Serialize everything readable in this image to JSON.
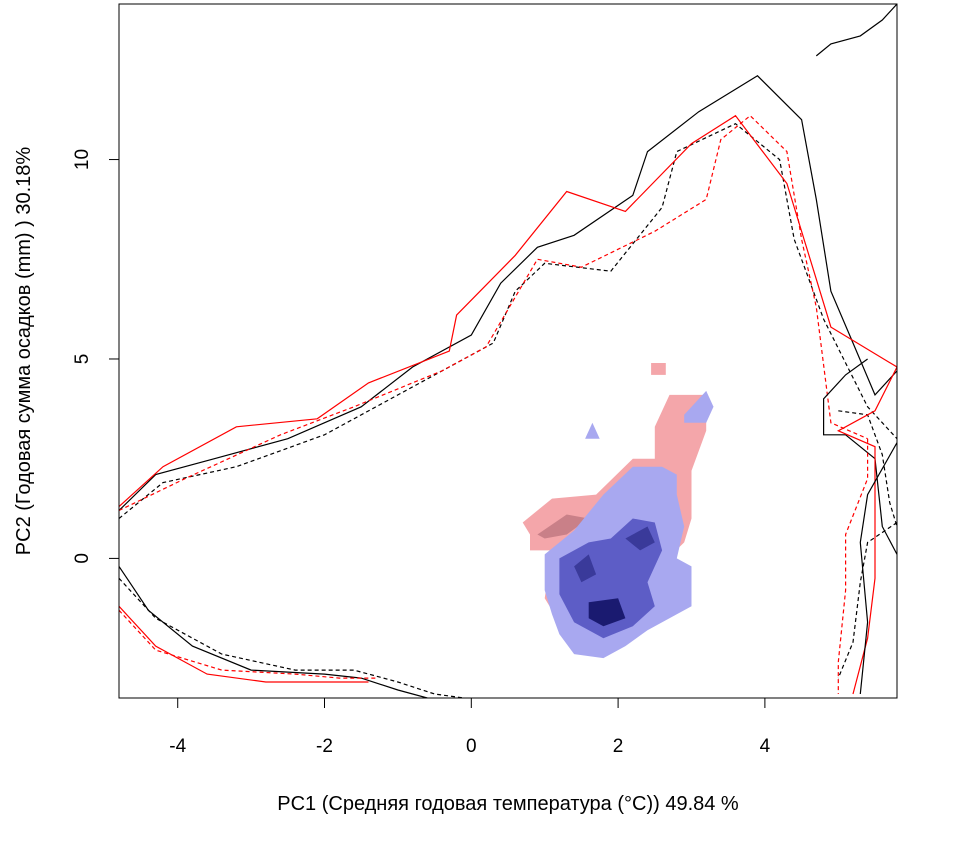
{
  "chart_data": {
    "type": "heatmap",
    "title": "",
    "xlabel": "PC1 (Средняя годовая температура (°C)) 49.84 %",
    "ylabel": "PC2 (Годовая сумма осадков  (mm) ) 30.18%",
    "xlim": [
      -4.8,
      5.8
    ],
    "ylim": [
      -3.5,
      13.9
    ],
    "x_ticks": [
      -4,
      -2,
      0,
      2,
      4
    ],
    "y_ticks": [
      0,
      5,
      10
    ],
    "x_tick_labels": [
      "-4",
      "-2",
      "0",
      "2",
      "4"
    ],
    "y_tick_labels": [
      "0",
      "5",
      "10"
    ],
    "grid": false,
    "legend": "none",
    "colors": {
      "contour_black": "#000000",
      "contour_red": "#ff0000",
      "unfilling": "#f4a6aa",
      "unfilling_dark": "#c98088",
      "stability_light": "#a8a8f0",
      "stability_mid": "#5d5dc6",
      "stability_dark": "#1a1a70"
    },
    "contours": [
      {
        "id": "black-solid",
        "color": "#000000",
        "dash": "solid",
        "points": [
          [
            -4.8,
            1.2
          ],
          [
            -4.3,
            2.1
          ],
          [
            -3.5,
            2.5
          ],
          [
            -2.5,
            3.0
          ],
          [
            -1.5,
            3.8
          ],
          [
            -0.8,
            4.8
          ],
          [
            0,
            5.6
          ],
          [
            0.4,
            6.9
          ],
          [
            0.9,
            7.8
          ],
          [
            1.4,
            8.1
          ],
          [
            2.2,
            9.1
          ],
          [
            2.4,
            10.2
          ],
          [
            3.1,
            11.2
          ],
          [
            3.9,
            12.1
          ],
          [
            4.5,
            11.0
          ],
          [
            4.7,
            9.0
          ],
          [
            4.9,
            6.7
          ],
          [
            5.2,
            5.4
          ],
          [
            5.5,
            4.1
          ],
          [
            5.8,
            4.7
          ]
        ]
      },
      {
        "id": "black-dashed",
        "color": "#000000",
        "dash": "dashed",
        "points": [
          [
            -4.8,
            1.0
          ],
          [
            -4.2,
            1.9
          ],
          [
            -3.2,
            2.3
          ],
          [
            -2.0,
            3.1
          ],
          [
            -1.0,
            4.1
          ],
          [
            0.3,
            5.4
          ],
          [
            0.6,
            6.7
          ],
          [
            1.0,
            7.4
          ],
          [
            1.9,
            7.2
          ],
          [
            2.6,
            8.8
          ],
          [
            2.8,
            10.2
          ],
          [
            3.6,
            10.9
          ],
          [
            4.2,
            10.0
          ],
          [
            4.4,
            8.0
          ],
          [
            4.8,
            6.0
          ],
          [
            5.4,
            3.8
          ],
          [
            5.8,
            3.0
          ]
        ]
      },
      {
        "id": "red-solid",
        "color": "#ff0000",
        "dash": "solid",
        "points": [
          [
            -4.8,
            1.3
          ],
          [
            -4.2,
            2.3
          ],
          [
            -3.2,
            3.3
          ],
          [
            -2.1,
            3.5
          ],
          [
            -1.4,
            4.4
          ],
          [
            -0.3,
            5.2
          ],
          [
            -0.2,
            6.1
          ],
          [
            0.6,
            7.6
          ],
          [
            1.3,
            9.2
          ],
          [
            2.1,
            8.7
          ],
          [
            3.0,
            10.4
          ],
          [
            3.6,
            11.1
          ],
          [
            4.3,
            9.4
          ],
          [
            4.7,
            7.0
          ],
          [
            4.9,
            5.8
          ],
          [
            5.8,
            4.8
          ]
        ]
      },
      {
        "id": "red-dashed",
        "color": "#ff0000",
        "dash": "dashed",
        "points": [
          [
            -4.8,
            1.2
          ],
          [
            -3.9,
            2.0
          ],
          [
            -2.6,
            3.1
          ],
          [
            -1.6,
            3.8
          ],
          [
            -0.4,
            4.7
          ],
          [
            0.2,
            5.3
          ],
          [
            0.9,
            7.5
          ],
          [
            1.5,
            7.3
          ],
          [
            2.5,
            8.2
          ],
          [
            3.2,
            9.0
          ],
          [
            3.4,
            10.5
          ],
          [
            3.8,
            11.1
          ],
          [
            4.3,
            10.2
          ],
          [
            4.5,
            8.0
          ],
          [
            4.7,
            6.3
          ],
          [
            4.9,
            3.4
          ],
          [
            5.4,
            3.0
          ]
        ]
      },
      {
        "id": "black-solid-bottom",
        "color": "#000000",
        "dash": "solid",
        "points": [
          [
            -4.8,
            -0.2
          ],
          [
            -4.4,
            -1.3
          ],
          [
            -3.8,
            -2.2
          ],
          [
            -3.0,
            -2.8
          ],
          [
            -2.0,
            -2.9
          ],
          [
            -1.5,
            -3.0
          ],
          [
            -1.0,
            -3.3
          ],
          [
            -0.6,
            -3.5
          ]
        ]
      },
      {
        "id": "black-dashed-bottom",
        "color": "#000000",
        "dash": "dashed",
        "points": [
          [
            -4.8,
            -0.5
          ],
          [
            -4.3,
            -1.5
          ],
          [
            -3.4,
            -2.4
          ],
          [
            -2.4,
            -2.8
          ],
          [
            -1.6,
            -2.8
          ],
          [
            -1.0,
            -3.1
          ],
          [
            -0.5,
            -3.4
          ],
          [
            -0.1,
            -3.5
          ]
        ]
      },
      {
        "id": "red-solid-bottom",
        "color": "#ff0000",
        "dash": "solid",
        "points": [
          [
            -4.8,
            -1.2
          ],
          [
            -4.3,
            -2.2
          ],
          [
            -3.6,
            -2.9
          ],
          [
            -2.8,
            -3.1
          ],
          [
            -2.0,
            -3.1
          ],
          [
            -1.4,
            -3.1
          ]
        ]
      },
      {
        "id": "red-dashed-bottom",
        "color": "#ff0000",
        "dash": "dashed",
        "points": [
          [
            -4.8,
            -1.3
          ],
          [
            -4.3,
            -2.3
          ],
          [
            -3.4,
            -2.8
          ],
          [
            -2.4,
            -2.9
          ],
          [
            -1.8,
            -3.0
          ],
          [
            -1.3,
            -3.0
          ]
        ]
      },
      {
        "id": "black-solid-right",
        "color": "#000000",
        "dash": "solid",
        "points": [
          [
            5.4,
            5.0
          ],
          [
            5.1,
            4.6
          ],
          [
            4.8,
            4.0
          ],
          [
            4.8,
            3.1
          ],
          [
            5.1,
            3.1
          ],
          [
            5.5,
            2.5
          ],
          [
            5.6,
            0.8
          ],
          [
            5.8,
            0.1
          ]
        ]
      },
      {
        "id": "black-dashed-right",
        "color": "#000000",
        "dash": "dashed",
        "points": [
          [
            5.0,
            3.7
          ],
          [
            5.4,
            3.6
          ],
          [
            5.6,
            2.6
          ],
          [
            5.7,
            1.4
          ],
          [
            5.8,
            0.8
          ]
        ]
      },
      {
        "id": "red-solid-right",
        "color": "#ff0000",
        "dash": "solid",
        "points": [
          [
            5.8,
            4.8
          ],
          [
            5.5,
            3.7
          ],
          [
            5.0,
            3.2
          ],
          [
            5.5,
            2.8
          ],
          [
            5.5,
            1.5
          ],
          [
            5.5,
            -0.5
          ],
          [
            5.4,
            -2.0
          ],
          [
            5.2,
            -3.4
          ]
        ]
      },
      {
        "id": "red-dashed-right",
        "color": "#ff0000",
        "dash": "dashed",
        "points": [
          [
            5.4,
            3.0
          ],
          [
            5.4,
            2.0
          ],
          [
            5.1,
            0.6
          ],
          [
            5.1,
            -0.8
          ],
          [
            5.0,
            -2.6
          ],
          [
            5.0,
            -3.4
          ]
        ]
      },
      {
        "id": "black-solid-far-right",
        "color": "#000000",
        "dash": "solid",
        "points": [
          [
            5.8,
            2.9
          ],
          [
            5.4,
            1.6
          ],
          [
            5.3,
            0.4
          ],
          [
            5.4,
            -1.6
          ],
          [
            5.3,
            -3.4
          ]
        ]
      },
      {
        "id": "black-dashed-far-right",
        "color": "#000000",
        "dash": "dashed",
        "points": [
          [
            5.8,
            0.9
          ],
          [
            5.4,
            0.4
          ],
          [
            5.3,
            -0.6
          ],
          [
            5.2,
            -2.1
          ],
          [
            5.0,
            -3.0
          ]
        ]
      },
      {
        "id": "black-solid-top-right",
        "color": "#000000",
        "dash": "solid",
        "points": [
          [
            4.7,
            12.6
          ],
          [
            4.9,
            12.9
          ],
          [
            5.3,
            13.1
          ],
          [
            5.6,
            13.5
          ],
          [
            5.8,
            13.9
          ]
        ]
      }
    ],
    "regions": [
      {
        "id": "unfilling-main",
        "color": "#f4a6aa",
        "points": [
          [
            0.7,
            0.9
          ],
          [
            1.1,
            1.5
          ],
          [
            1.7,
            1.6
          ],
          [
            2.2,
            2.5
          ],
          [
            2.5,
            2.5
          ],
          [
            2.5,
            3.3
          ],
          [
            2.7,
            4.1
          ],
          [
            3.2,
            4.1
          ],
          [
            3.2,
            3.2
          ],
          [
            3.0,
            2.2
          ],
          [
            3.0,
            1.0
          ],
          [
            2.9,
            0.4
          ],
          [
            2.4,
            -0.5
          ],
          [
            1.9,
            -1.2
          ],
          [
            1.2,
            -1.6
          ],
          [
            1.0,
            -1.0
          ],
          [
            1.1,
            0.2
          ],
          [
            0.8,
            0.2
          ],
          [
            0.8,
            0.6
          ]
        ]
      },
      {
        "id": "unfilling-dot",
        "color": "#f4a6aa",
        "points": [
          [
            2.45,
            4.6
          ],
          [
            2.65,
            4.6
          ],
          [
            2.65,
            4.9
          ],
          [
            2.45,
            4.9
          ]
        ]
      },
      {
        "id": "unfilling-dark",
        "color": "#c98088",
        "points": [
          [
            0.9,
            0.6
          ],
          [
            1.3,
            1.1
          ],
          [
            1.6,
            1.0
          ],
          [
            1.3,
            0.6
          ],
          [
            1.0,
            0.5
          ]
        ]
      },
      {
        "id": "stability-light",
        "color": "#a8a8f0",
        "points": [
          [
            1.0,
            0.1
          ],
          [
            1.4,
            0.7
          ],
          [
            1.8,
            1.6
          ],
          [
            2.2,
            2.3
          ],
          [
            2.6,
            2.3
          ],
          [
            2.8,
            2.1
          ],
          [
            2.8,
            1.6
          ],
          [
            2.9,
            0.8
          ],
          [
            2.8,
            0.0
          ],
          [
            3.0,
            -0.2
          ],
          [
            3.0,
            -1.2
          ],
          [
            2.8,
            -1.4
          ],
          [
            2.4,
            -1.8
          ],
          [
            2.1,
            -2.2
          ],
          [
            1.8,
            -2.5
          ],
          [
            1.4,
            -2.4
          ],
          [
            1.2,
            -1.9
          ],
          [
            1.1,
            -1.4
          ],
          [
            1.0,
            -0.8
          ]
        ]
      },
      {
        "id": "stability-light-top",
        "color": "#a8a8f0",
        "points": [
          [
            2.9,
            3.6
          ],
          [
            3.2,
            4.2
          ],
          [
            3.3,
            3.8
          ],
          [
            3.2,
            3.4
          ],
          [
            2.9,
            3.4
          ]
        ]
      },
      {
        "id": "stability-light-dot",
        "color": "#a8a8f0",
        "points": [
          [
            1.55,
            3.0
          ],
          [
            1.65,
            3.4
          ],
          [
            1.75,
            3.0
          ]
        ]
      },
      {
        "id": "stability-mid",
        "color": "#5d5dc6",
        "points": [
          [
            1.2,
            0.0
          ],
          [
            1.6,
            0.4
          ],
          [
            1.9,
            0.5
          ],
          [
            2.2,
            1.0
          ],
          [
            2.5,
            0.9
          ],
          [
            2.6,
            0.2
          ],
          [
            2.4,
            -0.6
          ],
          [
            2.5,
            -1.2
          ],
          [
            2.2,
            -1.7
          ],
          [
            1.8,
            -2.0
          ],
          [
            1.4,
            -1.6
          ],
          [
            1.2,
            -0.9
          ]
        ]
      },
      {
        "id": "stability-dark-1",
        "color": "#1a1a70",
        "points": [
          [
            1.6,
            -1.1
          ],
          [
            2.0,
            -1.0
          ],
          [
            2.1,
            -1.5
          ],
          [
            1.8,
            -1.7
          ],
          [
            1.6,
            -1.5
          ]
        ]
      },
      {
        "id": "stability-dark-2",
        "color": "#3a3a9a",
        "points": [
          [
            2.1,
            0.5
          ],
          [
            2.4,
            0.8
          ],
          [
            2.5,
            0.4
          ],
          [
            2.3,
            0.2
          ]
        ]
      },
      {
        "id": "stability-dark-3",
        "color": "#3a3a9a",
        "points": [
          [
            1.4,
            -0.2
          ],
          [
            1.6,
            0.1
          ],
          [
            1.7,
            -0.4
          ],
          [
            1.5,
            -0.6
          ]
        ]
      }
    ]
  }
}
